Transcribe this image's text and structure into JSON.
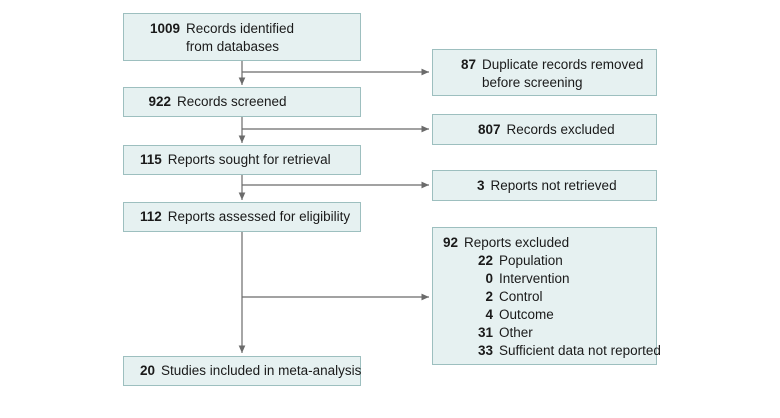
{
  "flow": {
    "identified": {
      "count": "1009",
      "label_line1": "Records identified",
      "label_line2": "from databases"
    },
    "duplicates": {
      "count": "87",
      "label_line1": "Duplicate records removed",
      "label_line2": "before screening"
    },
    "screened": {
      "count": "922",
      "label": "Records screened"
    },
    "excluded_records": {
      "count": "807",
      "label": "Records excluded"
    },
    "sought": {
      "count": "115",
      "label": "Reports sought for retrieval"
    },
    "not_retrieved": {
      "count": "3",
      "label": "Reports not retrieved"
    },
    "assessed": {
      "count": "112",
      "label": "Reports assessed for eligibility"
    },
    "reports_excluded": {
      "count": "92",
      "label": "Reports excluded",
      "reasons": [
        {
          "count": "22",
          "label": "Population"
        },
        {
          "count": "0",
          "label": "Intervention"
        },
        {
          "count": "2",
          "label": "Control"
        },
        {
          "count": "4",
          "label": "Outcome"
        },
        {
          "count": "31",
          "label": "Other"
        },
        {
          "count": "33",
          "label": "Sufficient data not reported"
        }
      ]
    },
    "included": {
      "count": "20",
      "label": "Studies included in meta-analysis"
    }
  },
  "colors": {
    "box_fill": "#e6f1f1",
    "box_border": "#9dbfbf",
    "arrow": "#6b6b6b"
  }
}
